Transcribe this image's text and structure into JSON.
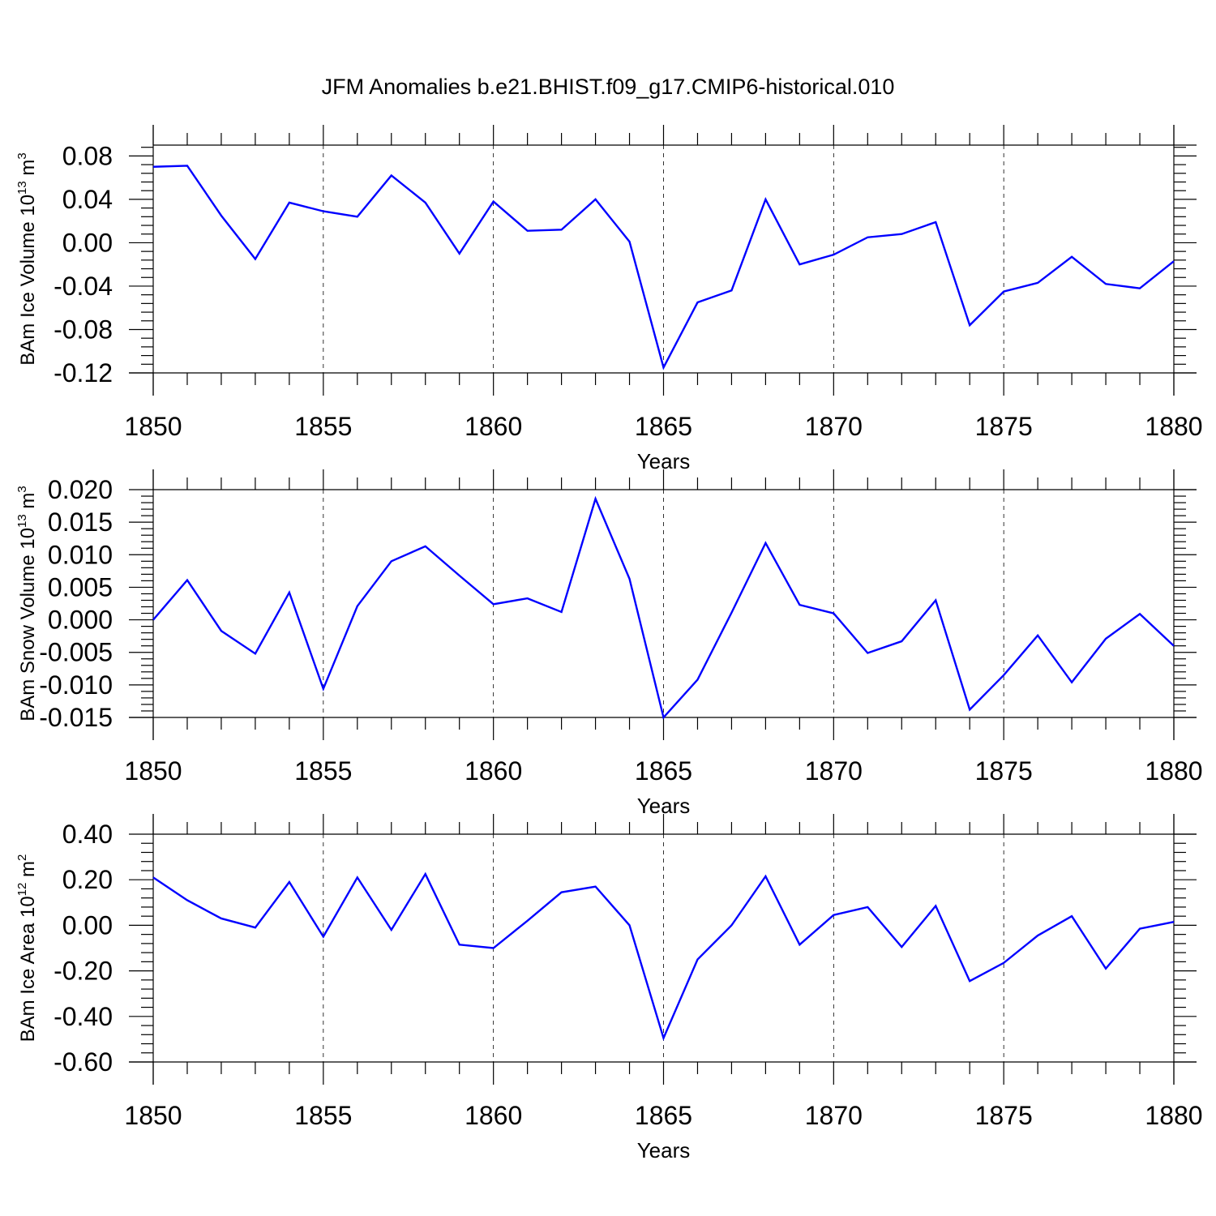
{
  "title": "JFM Anomalies b.e21.BHIST.f09_g17.CMIP6-historical.010",
  "colors": {
    "series": "#0000ff",
    "axis": "#000000"
  },
  "chart_data": [
    {
      "type": "line",
      "ylabel": "BAm Ice Volume 10^13 m^3",
      "ylabel_main": "BAm Ice Volume 10",
      "ylabel_exp": "13",
      "ylabel_unit": " m",
      "ylabel_unit_exp": "3",
      "xlabel": "Years",
      "xlim": [
        1850,
        1880
      ],
      "ylim": [
        -0.12,
        0.09
      ],
      "yticks": [
        0.08,
        0.04,
        0.0,
        -0.04,
        -0.08,
        -0.12
      ],
      "ytick_labels": [
        "0.08",
        "0.04",
        "0.00",
        "-0.04",
        "-0.08",
        "-0.12"
      ],
      "xticks": [
        1850,
        1855,
        1860,
        1865,
        1870,
        1875,
        1880
      ],
      "xtick_labels": [
        "1850",
        "1855",
        "1860",
        "1865",
        "1870",
        "1875",
        "1880"
      ],
      "grid": "x-major-dashed",
      "x": [
        1850,
        1851,
        1852,
        1853,
        1854,
        1855,
        1856,
        1857,
        1858,
        1859,
        1860,
        1861,
        1862,
        1863,
        1864,
        1865,
        1866,
        1867,
        1868,
        1869,
        1870,
        1871,
        1872,
        1873,
        1874,
        1875,
        1876,
        1877,
        1878,
        1879,
        1880
      ],
      "y": [
        0.07,
        0.071,
        0.025,
        -0.015,
        0.037,
        0.029,
        0.024,
        0.062,
        0.037,
        -0.01,
        0.038,
        0.011,
        0.012,
        0.04,
        0.001,
        -0.115,
        -0.055,
        -0.044,
        0.04,
        -0.02,
        -0.011,
        0.005,
        0.008,
        0.019,
        -0.076,
        -0.045,
        -0.037,
        -0.013,
        -0.038,
        -0.042,
        -0.017
      ]
    },
    {
      "type": "line",
      "ylabel": "BAm Snow Volume 10^13 m^3",
      "ylabel_main": "BAm Snow Volume 10",
      "ylabel_exp": "13",
      "ylabel_unit": " m",
      "ylabel_unit_exp": "3",
      "xlabel": "Years",
      "xlim": [
        1850,
        1880
      ],
      "ylim": [
        -0.015,
        0.02
      ],
      "yticks": [
        0.02,
        0.015,
        0.01,
        0.005,
        0.0,
        -0.005,
        -0.01,
        -0.015
      ],
      "ytick_labels": [
        "0.020",
        "0.015",
        "0.010",
        "0.005",
        "0.000",
        "-0.005",
        "-0.010",
        "-0.015"
      ],
      "xticks": [
        1850,
        1855,
        1860,
        1865,
        1870,
        1875,
        1880
      ],
      "xtick_labels": [
        "1850",
        "1855",
        "1860",
        "1865",
        "1870",
        "1875",
        "1880"
      ],
      "grid": "x-major-dashed",
      "x": [
        1850,
        1851,
        1852,
        1853,
        1854,
        1855,
        1856,
        1857,
        1858,
        1859,
        1860,
        1861,
        1862,
        1863,
        1864,
        1865,
        1866,
        1867,
        1868,
        1869,
        1870,
        1871,
        1872,
        1873,
        1874,
        1875,
        1876,
        1877,
        1878,
        1879,
        1880
      ],
      "y": [
        0.0,
        0.0061,
        -0.0017,
        -0.0052,
        0.0042,
        -0.0106,
        0.0021,
        0.009,
        0.0113,
        0.0068,
        0.0024,
        0.0033,
        0.0012,
        0.0186,
        0.0063,
        -0.015,
        -0.0092,
        0.0011,
        0.0118,
        0.0023,
        0.001,
        -0.0051,
        -0.0033,
        0.003,
        -0.0138,
        -0.0085,
        -0.0024,
        -0.0096,
        -0.0029,
        0.0009,
        -0.004
      ]
    },
    {
      "type": "line",
      "ylabel": "BAm Ice Area 10^12 m^2",
      "ylabel_main": "BAm Ice Area 10",
      "ylabel_exp": "12",
      "ylabel_unit": " m",
      "ylabel_unit_exp": "2",
      "xlabel": "Years",
      "xlim": [
        1850,
        1880
      ],
      "ylim": [
        -0.6,
        0.4
      ],
      "yticks": [
        0.4,
        0.2,
        0.0,
        -0.2,
        -0.4,
        -0.6
      ],
      "ytick_labels": [
        "0.40",
        "0.20",
        "0.00",
        "-0.20",
        "-0.40",
        "-0.60"
      ],
      "xticks": [
        1850,
        1855,
        1860,
        1865,
        1870,
        1875,
        1880
      ],
      "xtick_labels": [
        "1850",
        "1855",
        "1860",
        "1865",
        "1870",
        "1875",
        "1880"
      ],
      "grid": "x-major-dashed",
      "x": [
        1850,
        1851,
        1852,
        1853,
        1854,
        1855,
        1856,
        1857,
        1858,
        1859,
        1860,
        1861,
        1862,
        1863,
        1864,
        1865,
        1866,
        1867,
        1868,
        1869,
        1870,
        1871,
        1872,
        1873,
        1874,
        1875,
        1876,
        1877,
        1878,
        1879,
        1880
      ],
      "y": [
        0.21,
        0.11,
        0.03,
        -0.01,
        0.19,
        -0.05,
        0.21,
        -0.02,
        0.225,
        -0.085,
        -0.1,
        0.02,
        0.145,
        0.17,
        0.0,
        -0.495,
        -0.15,
        0.0,
        0.215,
        -0.085,
        0.045,
        0.08,
        -0.095,
        0.085,
        -0.245,
        -0.165,
        -0.045,
        0.04,
        -0.19,
        -0.015,
        0.015
      ]
    }
  ]
}
